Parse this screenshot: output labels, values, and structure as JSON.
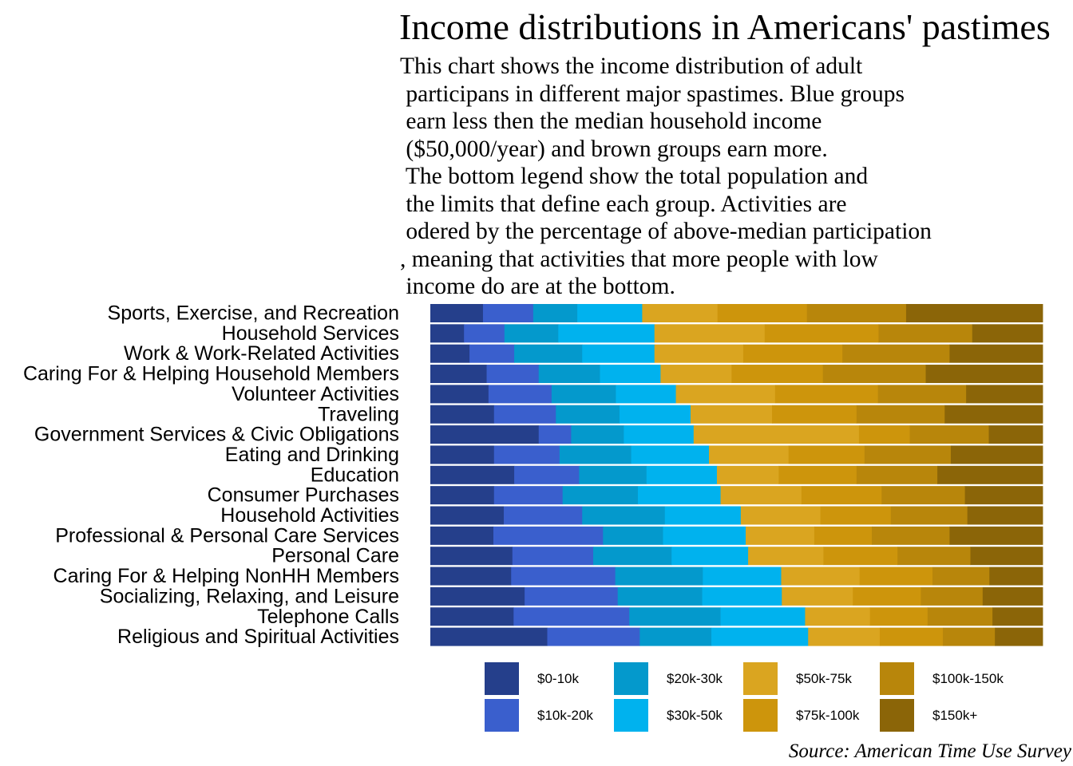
{
  "chart_data": {
    "type": "bar",
    "orientation": "horizontal",
    "stacked": "percent",
    "title": "Income distributions in Americans' pastimes",
    "subtitle": "This chart shows the income distribution of adult\n participans in different major spastimes. Blue groups\n earn less then the median household income\n ($50,000/year) and brown groups earn more.\n The bottom legend show the total population and\n the limits that define each group. Activities are\n odered by the percentage of above-median participation\n, meaning that activities that more people with low\n income do are at the bottom.",
    "source": "Source: American Time Use Survey",
    "legend_position": "bottom",
    "grid": false,
    "xlim": [
      0,
      100
    ],
    "categories": [
      "Sports, Exercise, and Recreation",
      "Household Services",
      "Work & Work-Related Activities",
      "Caring For & Helping Household Members",
      "Volunteer Activities",
      "Traveling",
      "Government Services & Civic Obligations",
      "Eating and Drinking",
      "Education",
      "Consumer Purchases",
      "Household Activities",
      "Professional & Personal Care Services",
      "Personal Care",
      "Caring For & Helping NonHH Members",
      "Socializing, Relaxing, and Leisure",
      "Telephone Calls",
      "Religious and Spiritual Activities"
    ],
    "series": [
      {
        "name": "$0-10k",
        "color": "#253f8b",
        "values": [
          8.6,
          5.5,
          6.4,
          9.2,
          9.5,
          10.4,
          17.7,
          10.4,
          13.7,
          10.4,
          12.0,
          10.3,
          13.4,
          13.2,
          15.4,
          13.6,
          19.1
        ]
      },
      {
        "name": "$10k-20k",
        "color": "#3a5fcd",
        "values": [
          8.2,
          6.6,
          7.3,
          8.5,
          10.3,
          10.1,
          5.3,
          10.7,
          10.6,
          11.2,
          12.8,
          17.9,
          13.2,
          17.0,
          15.2,
          18.9,
          15.1
        ]
      },
      {
        "name": "$20k-30k",
        "color": "#0499cc",
        "values": [
          7.2,
          8.8,
          11.1,
          10.0,
          10.5,
          10.4,
          8.6,
          11.7,
          11.0,
          12.3,
          13.5,
          9.8,
          12.8,
          14.3,
          13.8,
          14.9,
          11.7
        ]
      },
      {
        "name": "$30k-50k",
        "color": "#00b2ee",
        "values": [
          10.6,
          15.7,
          11.8,
          9.9,
          9.8,
          11.6,
          11.4,
          12.7,
          11.5,
          13.5,
          12.4,
          13.5,
          12.5,
          12.8,
          13.0,
          13.8,
          15.8
        ]
      },
      {
        "name": "$50k-75k",
        "color": "#daa520",
        "values": [
          12.3,
          18.0,
          14.5,
          11.6,
          16.2,
          13.3,
          27.0,
          13.0,
          10.1,
          13.2,
          13.0,
          11.2,
          12.3,
          12.8,
          11.6,
          10.6,
          11.7
        ]
      },
      {
        "name": "$75k-100k",
        "color": "#cd950c",
        "values": [
          14.6,
          18.6,
          16.2,
          14.9,
          16.8,
          13.8,
          8.3,
          12.4,
          12.7,
          13.1,
          11.5,
          9.4,
          12.1,
          11.9,
          11.1,
          9.4,
          10.3
        ]
      },
      {
        "name": "$100k-150k",
        "color": "#b8860b",
        "values": [
          16.2,
          15.3,
          17.5,
          16.8,
          14.4,
          14.4,
          12.9,
          14.1,
          13.2,
          13.6,
          12.5,
          12.7,
          11.9,
          9.3,
          10.1,
          10.6,
          8.5
        ]
      },
      {
        "name": "$150k+",
        "color": "#8b6508",
        "values": [
          22.3,
          11.5,
          15.2,
          19.1,
          12.5,
          16.0,
          8.8,
          15.0,
          17.2,
          12.7,
          12.3,
          15.2,
          11.8,
          8.7,
          9.8,
          8.2,
          7.8
        ]
      }
    ]
  }
}
